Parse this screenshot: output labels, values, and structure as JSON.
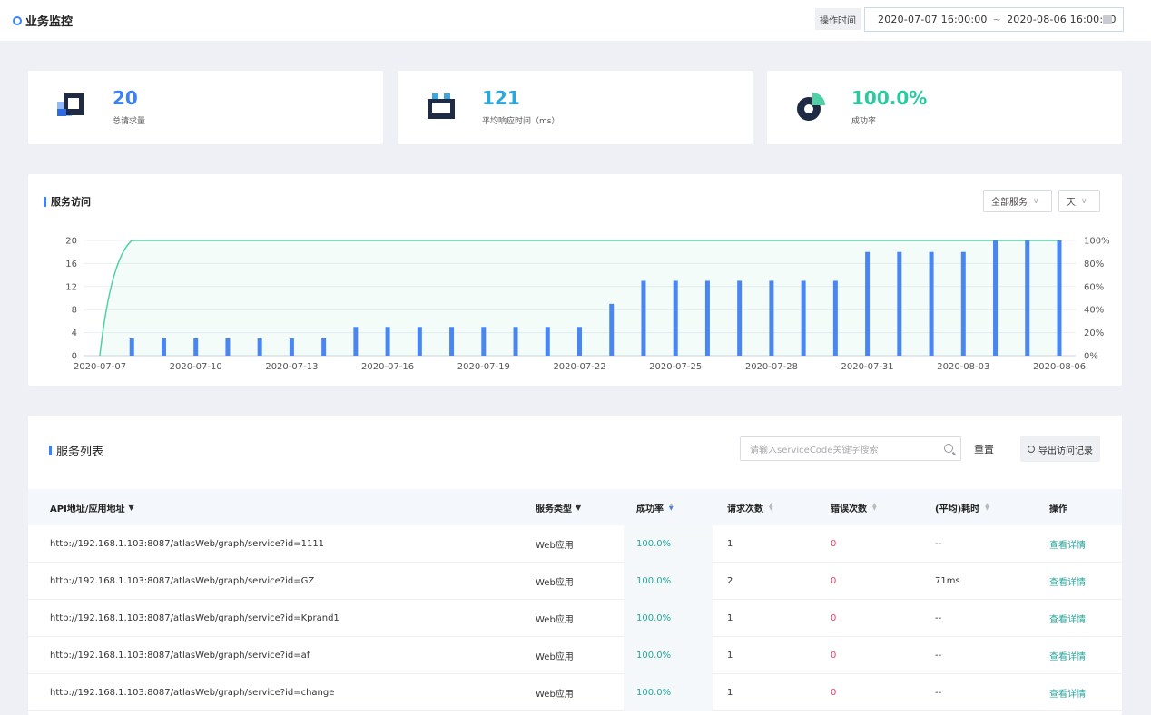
{
  "header": {
    "title": "业务监控",
    "time_label": "操作时间",
    "time_start": "2020-07-07 16:00:00",
    "time_sep": "~",
    "time_end": "2020-08-06 16:00:00"
  },
  "stats": [
    {
      "value": "20",
      "label": "总请求量",
      "color": "#3b82f6",
      "icon": "request-count-icon"
    },
    {
      "value": "121",
      "label": "平均响应时间（ms）",
      "color": "#2aa7de",
      "icon": "response-time-icon"
    },
    {
      "value": "100.0%",
      "label": "成功率",
      "color": "#2bc9a0",
      "icon": "success-rate-pie-icon"
    }
  ],
  "chart_panel": {
    "title": "服务访问",
    "service_filter": "全部服务",
    "granularity": "天"
  },
  "chart_data": {
    "type": "bar",
    "x": [
      "2020-07-07",
      "2020-07-08",
      "2020-07-09",
      "2020-07-10",
      "2020-07-11",
      "2020-07-12",
      "2020-07-13",
      "2020-07-14",
      "2020-07-15",
      "2020-07-16",
      "2020-07-17",
      "2020-07-18",
      "2020-07-19",
      "2020-07-20",
      "2020-07-21",
      "2020-07-22",
      "2020-07-23",
      "2020-07-24",
      "2020-07-25",
      "2020-07-26",
      "2020-07-27",
      "2020-07-28",
      "2020-07-29",
      "2020-07-30",
      "2020-07-31",
      "2020-08-01",
      "2020-08-02",
      "2020-08-03",
      "2020-08-04",
      "2020-08-05",
      "2020-08-06"
    ],
    "x_ticks": [
      "2020-07-07",
      "2020-07-10",
      "2020-07-13",
      "2020-07-16",
      "2020-07-19",
      "2020-07-22",
      "2020-07-25",
      "2020-07-28",
      "2020-07-31",
      "2020-08-03",
      "2020-08-06"
    ],
    "series": [
      {
        "type": "bar",
        "axis": "left",
        "color": "#4a86f0",
        "values": [
          0,
          3,
          3,
          3,
          3,
          3,
          3,
          3,
          5,
          5,
          5,
          5,
          5,
          5,
          5,
          5,
          9,
          13,
          13,
          13,
          13,
          13,
          13,
          13,
          18,
          18,
          18,
          18,
          20,
          20,
          20
        ]
      },
      {
        "type": "area",
        "axis": "right",
        "color": "#4fd1a5",
        "values": [
          0,
          100,
          100,
          100,
          100,
          100,
          100,
          100,
          100,
          100,
          100,
          100,
          100,
          100,
          100,
          100,
          100,
          100,
          100,
          100,
          100,
          100,
          100,
          100,
          100,
          100,
          100,
          100,
          100,
          100,
          100
        ]
      }
    ],
    "y_left": {
      "ylim": [
        0,
        20
      ],
      "ticks": [
        "0",
        "4",
        "8",
        "12",
        "16",
        "20"
      ]
    },
    "y_right": {
      "ylim": [
        0,
        100
      ],
      "ticks": [
        "0%",
        "20%",
        "40%",
        "60%",
        "80%",
        "100%"
      ]
    },
    "grid": true
  },
  "list_panel": {
    "title": "服务列表",
    "search_placeholder": "请输入serviceCode关键字搜索",
    "reset_label": "重置",
    "export_label": "导出访问记录",
    "columns": [
      "API地址/应用地址",
      "服务类型",
      "成功率",
      "请求次数",
      "错误次数",
      "(平均)耗时",
      "操作"
    ],
    "rows": [
      {
        "url": "http://192.168.1.103:8087/atlasWeb/graph/service?id=1111",
        "type": "Web应用",
        "rate": "100.0%",
        "requests": "1",
        "errors": "0",
        "latency": "--",
        "action": "查看详情"
      },
      {
        "url": "http://192.168.1.103:8087/atlasWeb/graph/service?id=GZ",
        "type": "Web应用",
        "rate": "100.0%",
        "requests": "2",
        "errors": "0",
        "latency": "71ms",
        "action": "查看详情"
      },
      {
        "url": "http://192.168.1.103:8087/atlasWeb/graph/service?id=Kprand1",
        "type": "Web应用",
        "rate": "100.0%",
        "requests": "1",
        "errors": "0",
        "latency": "--",
        "action": "查看详情"
      },
      {
        "url": "http://192.168.1.103:8087/atlasWeb/graph/service?id=af",
        "type": "Web应用",
        "rate": "100.0%",
        "requests": "1",
        "errors": "0",
        "latency": "--",
        "action": "查看详情"
      },
      {
        "url": "http://192.168.1.103:8087/atlasWeb/graph/service?id=change",
        "type": "Web应用",
        "rate": "100.0%",
        "requests": "1",
        "errors": "0",
        "latency": "--",
        "action": "查看详情"
      }
    ]
  }
}
